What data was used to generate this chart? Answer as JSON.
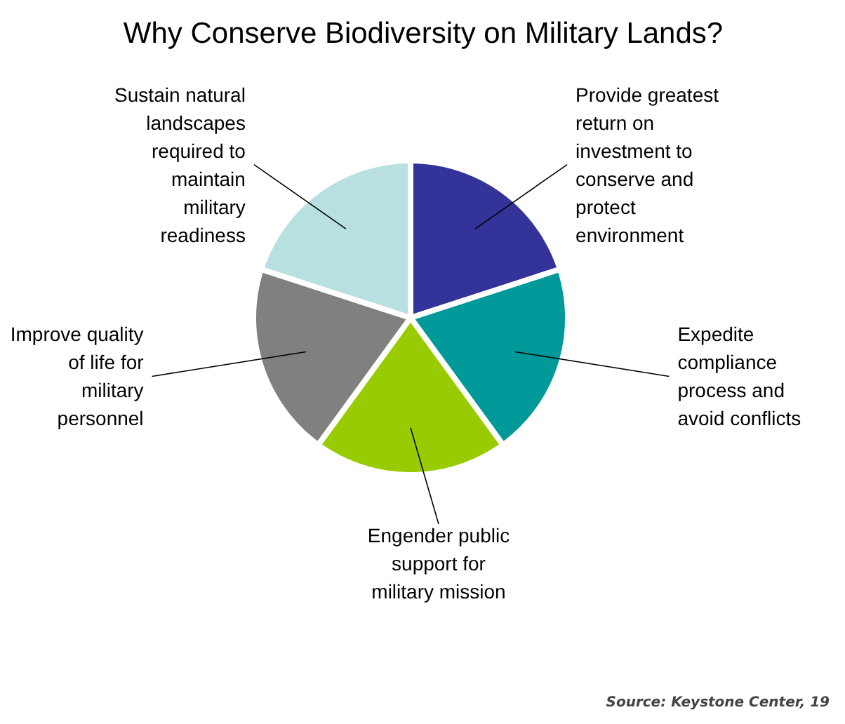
{
  "chart_data": {
    "type": "pie",
    "title": "Why Conserve Biodiversity on Military Lands?",
    "categories": [
      "Provide greatest return on investment to conserve and protect environment",
      "Expedite compliance process and avoid conflicts",
      "Engender public support for military mission",
      "Improve quality of life for military personnel",
      "Sustain natural landscapes required to maintain military readiness"
    ],
    "values": [
      20,
      20,
      20,
      20,
      20
    ],
    "colors": [
      "#333399",
      "#009999",
      "#99cc00",
      "#808080",
      "#b8e0e0"
    ],
    "annotations": [
      "Source:  Keystone Center, 19"
    ]
  }
}
